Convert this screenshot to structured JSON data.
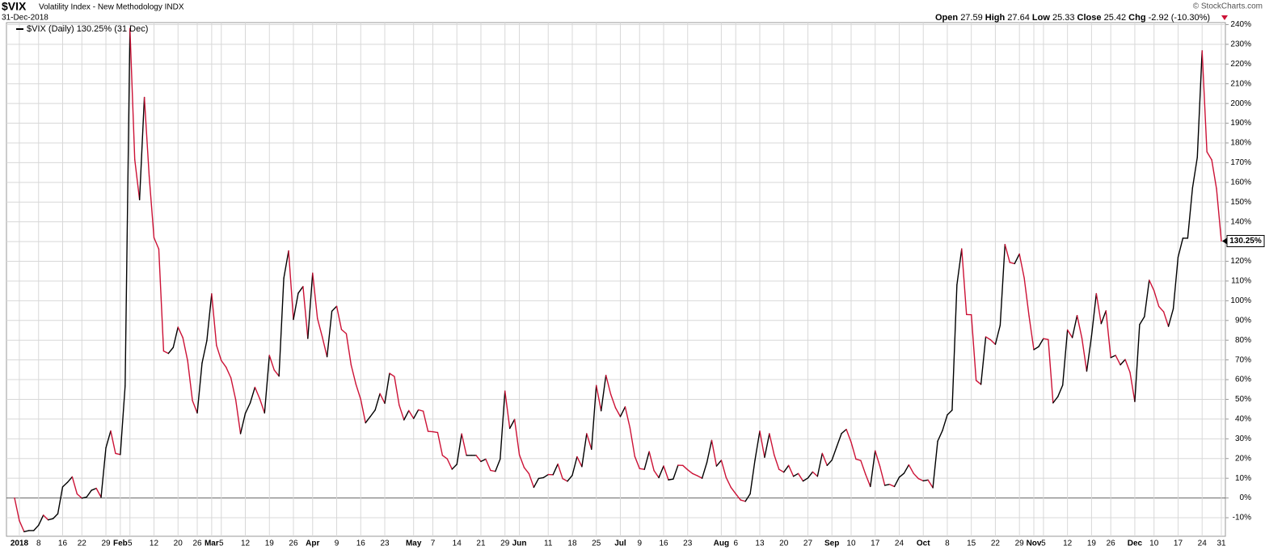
{
  "chart_data": {
    "type": "line",
    "title": "$VIX",
    "subtitle": "Volatility Index - New Methodology INDX",
    "date": "31-Dec-2018",
    "source": "© StockCharts.com",
    "quote": {
      "open_label": "Open",
      "open": "27.59",
      "high_label": "High",
      "high": "27.64",
      "low_label": "Low",
      "low": "25.33",
      "close_label": "Close",
      "close": "25.42",
      "chg_label": "Chg",
      "chg": "-2.92 (-10.30%)"
    },
    "last_value_label": "130.25%",
    "grid": true,
    "series": [
      {
        "name": "$VIX (Daily) 130.25% (31 Dec)",
        "color": "#000000",
        "down_color": "#cc1236",
        "values": [
          0,
          -11.5,
          -17.1,
          -16.5,
          -16.5,
          -13.8,
          -8.7,
          -11.1,
          -10.5,
          -8.0,
          5.6,
          7.9,
          10.7,
          2.1,
          -0.1,
          0.5,
          3.9,
          4.9,
          0.4,
          25.4,
          34.0,
          22.6,
          22.0,
          56.8,
          238.0,
          171.6,
          151.2,
          203.1,
          163.2,
          132.0,
          126.2,
          74.5,
          73.3,
          76.3,
          86.6,
          81.3,
          69.6,
          49.4,
          43.1,
          68.4,
          79.8,
          103.5,
          77.4,
          69.7,
          66.3,
          60.9,
          49.8,
          32.6,
          42.9,
          48.1,
          56.1,
          50.3,
          43.1,
          72.3,
          64.9,
          61.8,
          111.4,
          125.3,
          90.5,
          103.8,
          107.2,
          80.9,
          114,
          91,
          81.7,
          71.6,
          94.7,
          97.2,
          85.4,
          83.3,
          67.5,
          57.7,
          50,
          38.1,
          41.3,
          44.6,
          52.9,
          48,
          63.2,
          61.6,
          47.1,
          39.6,
          44.3,
          40.3,
          44.7,
          44,
          33.8,
          33.6,
          33.2,
          21.6,
          19.8,
          14.6,
          17.1,
          32.5,
          21.6,
          21.6,
          21.6,
          18.5,
          19.7,
          14,
          13.5,
          19.7,
          54.2,
          35.3,
          39.8,
          21.9,
          15.4,
          12.3,
          5.4,
          9.9,
          10.3,
          11.9,
          11.8,
          17.2,
          9.8,
          8.5,
          11.5,
          20.9,
          15.9,
          32.6,
          24.7,
          57,
          44.2,
          62.2,
          52.6,
          45.7,
          41.3,
          46.2,
          35.6,
          21.1,
          14.9,
          14.5,
          23.5,
          13.9,
          10.3,
          16.2,
          9.2,
          9.6,
          16.6,
          16.5,
          14.3,
          12.4,
          11.3,
          10,
          18,
          29.2,
          16.2,
          19.1,
          10.4,
          5.4,
          2.1,
          -1,
          -1.7,
          2.1,
          19.2,
          33.9,
          20.6,
          32.6,
          21.8,
          14.5,
          13.1,
          16.5,
          11,
          12.4,
          8.6,
          10.1,
          13.2,
          11,
          22.6,
          16.5,
          19.2,
          26,
          32.7,
          34.8,
          28.3,
          19.7,
          19,
          12,
          5.8,
          23.9,
          15.9,
          6.4,
          6.9,
          5.8,
          10.5,
          12.5,
          16.8,
          12.4,
          9.8,
          8.7,
          9.1,
          5.2,
          28.8,
          34.2,
          42.1,
          44.5,
          108,
          126.3,
          93,
          92.9,
          59.6,
          57.6,
          81.7,
          80.2,
          77.9,
          87.6,
          128.5,
          119.4,
          118.8,
          123.7,
          111.5,
          92.3,
          75.2,
          76.7,
          80.8,
          80.3,
          48.2,
          51.4,
          57.2,
          85.2,
          81.3,
          92.5,
          81,
          64.3,
          82.1,
          103.6,
          88.4,
          94.9,
          71.2,
          72.3,
          67.5,
          70.2,
          63.7,
          48.9,
          87.9,
          91.9,
          110.4,
          105.1,
          97.1,
          94.4,
          87,
          95.9,
          122.1,
          131.7,
          131.7,
          157.1,
          172.7,
          226.7,
          175.5,
          171.4,
          156.7,
          130.25
        ]
      }
    ],
    "ylim": [
      -19,
      241
    ],
    "yticks": [
      {
        "value": -10,
        "label": "-10%"
      },
      {
        "value": 0,
        "label": "0%"
      },
      {
        "value": 10,
        "label": "10%"
      },
      {
        "value": 20,
        "label": "20%"
      },
      {
        "value": 30,
        "label": "30%"
      },
      {
        "value": 40,
        "label": "40%"
      },
      {
        "value": 50,
        "label": "50%"
      },
      {
        "value": 60,
        "label": "60%"
      },
      {
        "value": 70,
        "label": "70%"
      },
      {
        "value": 80,
        "label": "80%"
      },
      {
        "value": 90,
        "label": "90%"
      },
      {
        "value": 100,
        "label": "100%"
      },
      {
        "value": 110,
        "label": "110%"
      },
      {
        "value": 120,
        "label": "120%"
      },
      {
        "value": 130,
        "label": "130%"
      },
      {
        "value": 140,
        "label": "140%"
      },
      {
        "value": 150,
        "label": "150%"
      },
      {
        "value": 160,
        "label": "160%"
      },
      {
        "value": 170,
        "label": "170%"
      },
      {
        "value": 180,
        "label": "180%"
      },
      {
        "value": 190,
        "label": "190%"
      },
      {
        "value": 200,
        "label": "200%"
      },
      {
        "value": 210,
        "label": "210%"
      },
      {
        "value": 220,
        "label": "220%"
      },
      {
        "value": 230,
        "label": "230%"
      },
      {
        "value": 240,
        "label": "240%"
      }
    ],
    "xticks": [
      {
        "value": 1,
        "label": "2018"
      },
      {
        "value": 5,
        "label": "8"
      },
      {
        "value": 10,
        "label": "16"
      },
      {
        "value": 14,
        "label": "22"
      },
      {
        "value": 19,
        "label": "29"
      },
      {
        "value": 22,
        "label": "Feb"
      },
      {
        "value": 24,
        "label": "5"
      },
      {
        "value": 29,
        "label": "12"
      },
      {
        "value": 34,
        "label": "20"
      },
      {
        "value": 38,
        "label": "26"
      },
      {
        "value": 41,
        "label": "Mar"
      },
      {
        "value": 43,
        "label": "5"
      },
      {
        "value": 48,
        "label": "12"
      },
      {
        "value": 53,
        "label": "19"
      },
      {
        "value": 58,
        "label": "26"
      },
      {
        "value": 62,
        "label": "Apr"
      },
      {
        "value": 67,
        "label": "9"
      },
      {
        "value": 72,
        "label": "16"
      },
      {
        "value": 77,
        "label": "23"
      },
      {
        "value": 83,
        "label": "May"
      },
      {
        "value": 87,
        "label": "7"
      },
      {
        "value": 92,
        "label": "14"
      },
      {
        "value": 97,
        "label": "21"
      },
      {
        "value": 102,
        "label": "29"
      },
      {
        "value": 105,
        "label": "Jun"
      },
      {
        "value": 111,
        "label": "11"
      },
      {
        "value": 116,
        "label": "18"
      },
      {
        "value": 121,
        "label": "25"
      },
      {
        "value": 126,
        "label": "Jul"
      },
      {
        "value": 130,
        "label": "9"
      },
      {
        "value": 135,
        "label": "16"
      },
      {
        "value": 140,
        "label": "23"
      },
      {
        "value": 147,
        "label": "Aug"
      },
      {
        "value": 150,
        "label": "6"
      },
      {
        "value": 155,
        "label": "13"
      },
      {
        "value": 160,
        "label": "20"
      },
      {
        "value": 165,
        "label": "27"
      },
      {
        "value": 170,
        "label": "Sep"
      },
      {
        "value": 174,
        "label": "10"
      },
      {
        "value": 179,
        "label": "17"
      },
      {
        "value": 184,
        "label": "24"
      },
      {
        "value": 189,
        "label": "Oct"
      },
      {
        "value": 194,
        "label": "8"
      },
      {
        "value": 199,
        "label": "15"
      },
      {
        "value": 204,
        "label": "22"
      },
      {
        "value": 209,
        "label": "29"
      },
      {
        "value": 212,
        "label": "Nov"
      },
      {
        "value": 214,
        "label": "5"
      },
      {
        "value": 219,
        "label": "12"
      },
      {
        "value": 224,
        "label": "19"
      },
      {
        "value": 228,
        "label": "26"
      },
      {
        "value": 233,
        "label": "Dec"
      },
      {
        "value": 237,
        "label": "10"
      },
      {
        "value": 242,
        "label": "17"
      },
      {
        "value": 247,
        "label": "24"
      },
      {
        "value": 251,
        "label": "31"
      }
    ]
  }
}
